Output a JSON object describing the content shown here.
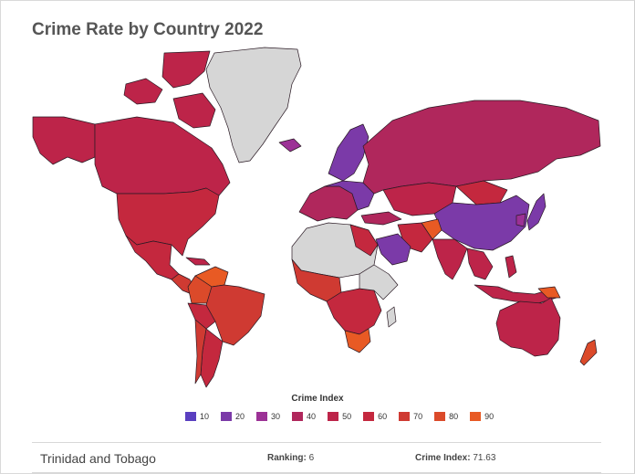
{
  "title": "Crime Rate by Country 2022",
  "colors": {
    "c10": "#5a3fc0",
    "c20": "#7b3aa8",
    "c30": "#9c3196",
    "c40": "#b0275c",
    "c50": "#bd2449",
    "c60": "#c4283e",
    "c70": "#cf3a32",
    "c80": "#db4a2a",
    "c90": "#e85a24",
    "nodata": "#d6d6d6"
  },
  "legend": {
    "title": "Crime Index",
    "items": [
      {
        "label": "10",
        "color": "#5a3fc0"
      },
      {
        "label": "20",
        "color": "#7b3aa8"
      },
      {
        "label": "30",
        "color": "#9c3196"
      },
      {
        "label": "40",
        "color": "#b0275c"
      },
      {
        "label": "50",
        "color": "#bd2449"
      },
      {
        "label": "60",
        "color": "#c4283e"
      },
      {
        "label": "70",
        "color": "#cf3a32"
      },
      {
        "label": "80",
        "color": "#db4a2a"
      },
      {
        "label": "90",
        "color": "#e85a24"
      }
    ]
  },
  "info": {
    "country": "Trinidad and Tobago",
    "ranking_label": "Ranking:",
    "ranking_value": "6",
    "index_label": "Crime Index:",
    "index_value": "71.63"
  }
}
